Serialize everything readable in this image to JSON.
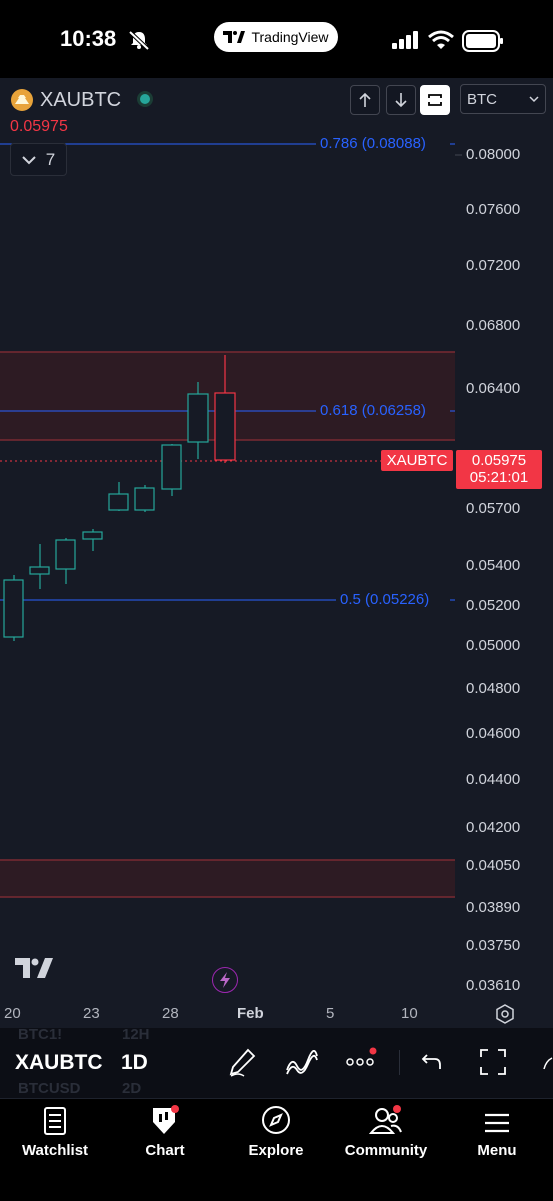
{
  "status_bar": {
    "time": "10:38",
    "app_pill": "TradingView"
  },
  "header": {
    "symbol": "XAUBTC",
    "last_price": "0.05975",
    "collapse_count": "7",
    "currency": "BTC"
  },
  "price_axis": [
    "0.08000",
    "0.07600",
    "0.07200",
    "0.06800",
    "0.06400",
    "0.05700",
    "0.05400",
    "0.05200",
    "0.05000",
    "0.04800",
    "0.04600",
    "0.04400",
    "0.04200",
    "0.04050",
    "0.03890",
    "0.03750",
    "0.03610"
  ],
  "fib_levels": [
    {
      "label": "0.786 (0.08088)"
    },
    {
      "label": "0.618 (0.06258)"
    },
    {
      "label": "0.5 (0.05226)"
    }
  ],
  "price_tag": {
    "symbol": "XAUBTC",
    "price": "0.05975",
    "countdown": "05:21:01"
  },
  "date_axis": [
    "20",
    "23",
    "28",
    "Feb",
    "5",
    "10"
  ],
  "toolbar": {
    "symbol": "XAUBTC",
    "interval": "1D",
    "ghost_symbols": [
      "BTC1!",
      "BTCUSD"
    ],
    "ghost_intervals": [
      "12H",
      "2D"
    ]
  },
  "tabs": [
    "Watchlist",
    "Chart",
    "Explore",
    "Community",
    "Menu"
  ],
  "colors": {
    "up": "#26a69a",
    "down": "#f23645",
    "fib": "#2962ff",
    "zone": "#3a1e26"
  }
}
